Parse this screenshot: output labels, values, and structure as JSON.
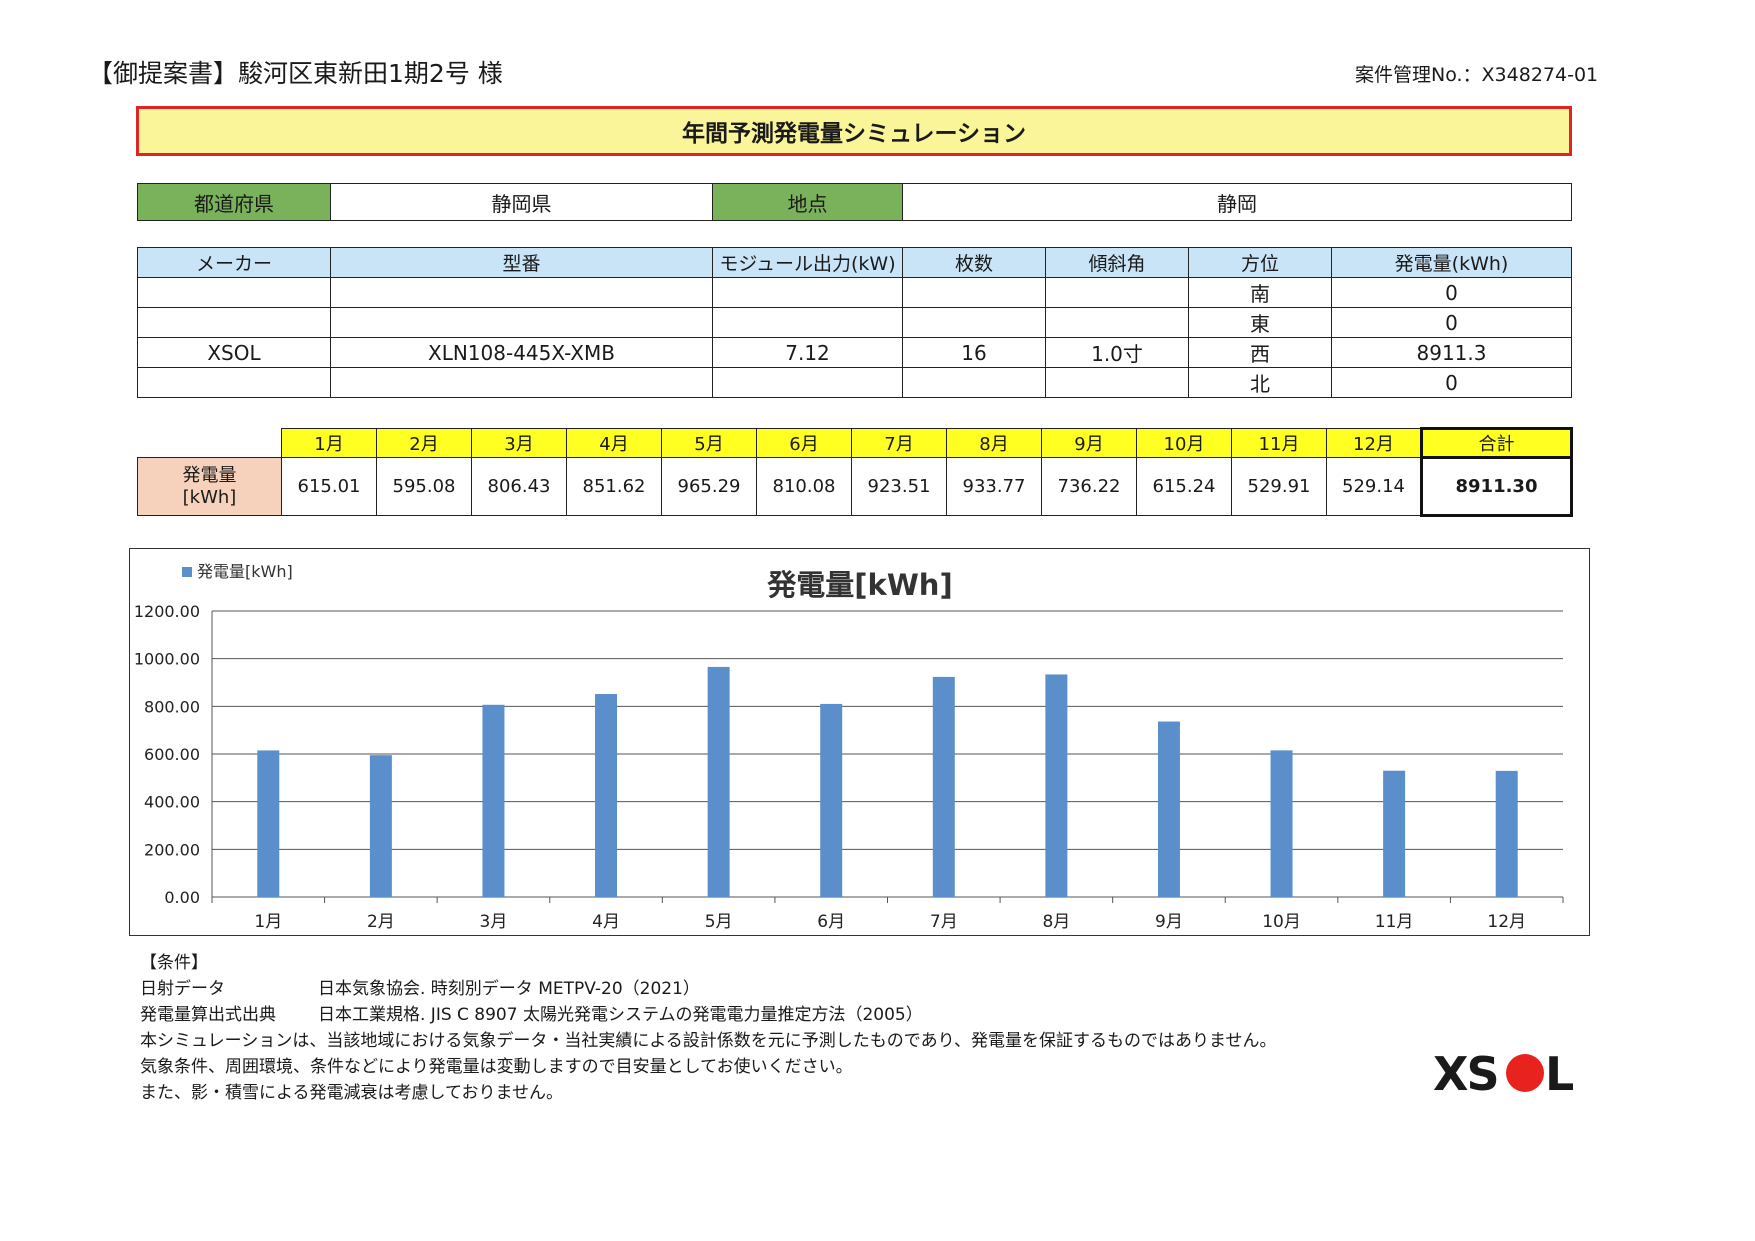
{
  "header": {
    "title": "【御提案書】駿河区東新田1期2号 様",
    "case_no": "案件管理No.：X348274-01"
  },
  "banner": {
    "title": "年間予測発電量シミュレーション"
  },
  "location": {
    "pref_label": "都道府県",
    "pref_value": "静岡県",
    "point_label": "地点",
    "point_value": "静岡"
  },
  "spec": {
    "headers": [
      "メーカー",
      "型番",
      "モジュール出力(kW)",
      "枚数",
      "傾斜角",
      "方位",
      "発電量(kWh)"
    ],
    "rows": [
      [
        "",
        "",
        "",
        "",
        "",
        "南",
        "0"
      ],
      [
        "",
        "",
        "",
        "",
        "",
        "東",
        "0"
      ],
      [
        "XSOL",
        "XLN108-445X-XMB",
        "7.12",
        "16",
        "1.0寸",
        "西",
        "8911.3"
      ],
      [
        "",
        "",
        "",
        "",
        "",
        "北",
        "0"
      ]
    ]
  },
  "monthly": {
    "row_label_line1": "発電量",
    "row_label_line2": "[kWh]",
    "months": [
      "1月",
      "2月",
      "3月",
      "4月",
      "5月",
      "6月",
      "7月",
      "8月",
      "9月",
      "10月",
      "11月",
      "12月"
    ],
    "values": [
      "615.01",
      "595.08",
      "806.43",
      "851.62",
      "965.29",
      "810.08",
      "923.51",
      "933.77",
      "736.22",
      "615.24",
      "529.91",
      "529.14"
    ],
    "total_label": "合計",
    "total_value": "8911.30"
  },
  "chart_data": {
    "type": "bar",
    "title": "発電量[kWh]",
    "categories": [
      "1月",
      "2月",
      "3月",
      "4月",
      "5月",
      "6月",
      "7月",
      "8月",
      "9月",
      "10月",
      "11月",
      "12月"
    ],
    "series": [
      {
        "name": "発電量[kWh]",
        "values": [
          615.01,
          595.08,
          806.43,
          851.62,
          965.29,
          810.08,
          923.51,
          933.77,
          736.22,
          615.24,
          529.91,
          529.14
        ]
      }
    ],
    "yticks": [
      "0.00",
      "200.00",
      "400.00",
      "600.00",
      "800.00",
      "1000.00",
      "1200.00"
    ],
    "ylim": [
      0,
      1200
    ],
    "grid": true,
    "legend": "top-left",
    "bar_color": "#5b8fcb"
  },
  "conditions": {
    "heading": "【条件】",
    "solar_label": "日射データ",
    "solar_value": "日本気象協会. 時刻別データ METPV-20（2021）",
    "calc_label": "発電量算出式出典",
    "calc_value": "日本工業規格. JIS C 8907 太陽光発電システムの発電電力量推定方法（2005）",
    "note1": "本シミュレーションは、当該地域における気象データ・当社実績による設計係数を元に予測したものであり、発電量を保証するものではありません。",
    "note2": "気象条件、周囲環境、条件などにより発電量は変動しますので目安量としてお使いください。",
    "note3": "また、影・積雪による発電減衰は考慮しておりません。"
  },
  "logo": {
    "text": "XSOL",
    "dot_color": "#e8231f"
  }
}
